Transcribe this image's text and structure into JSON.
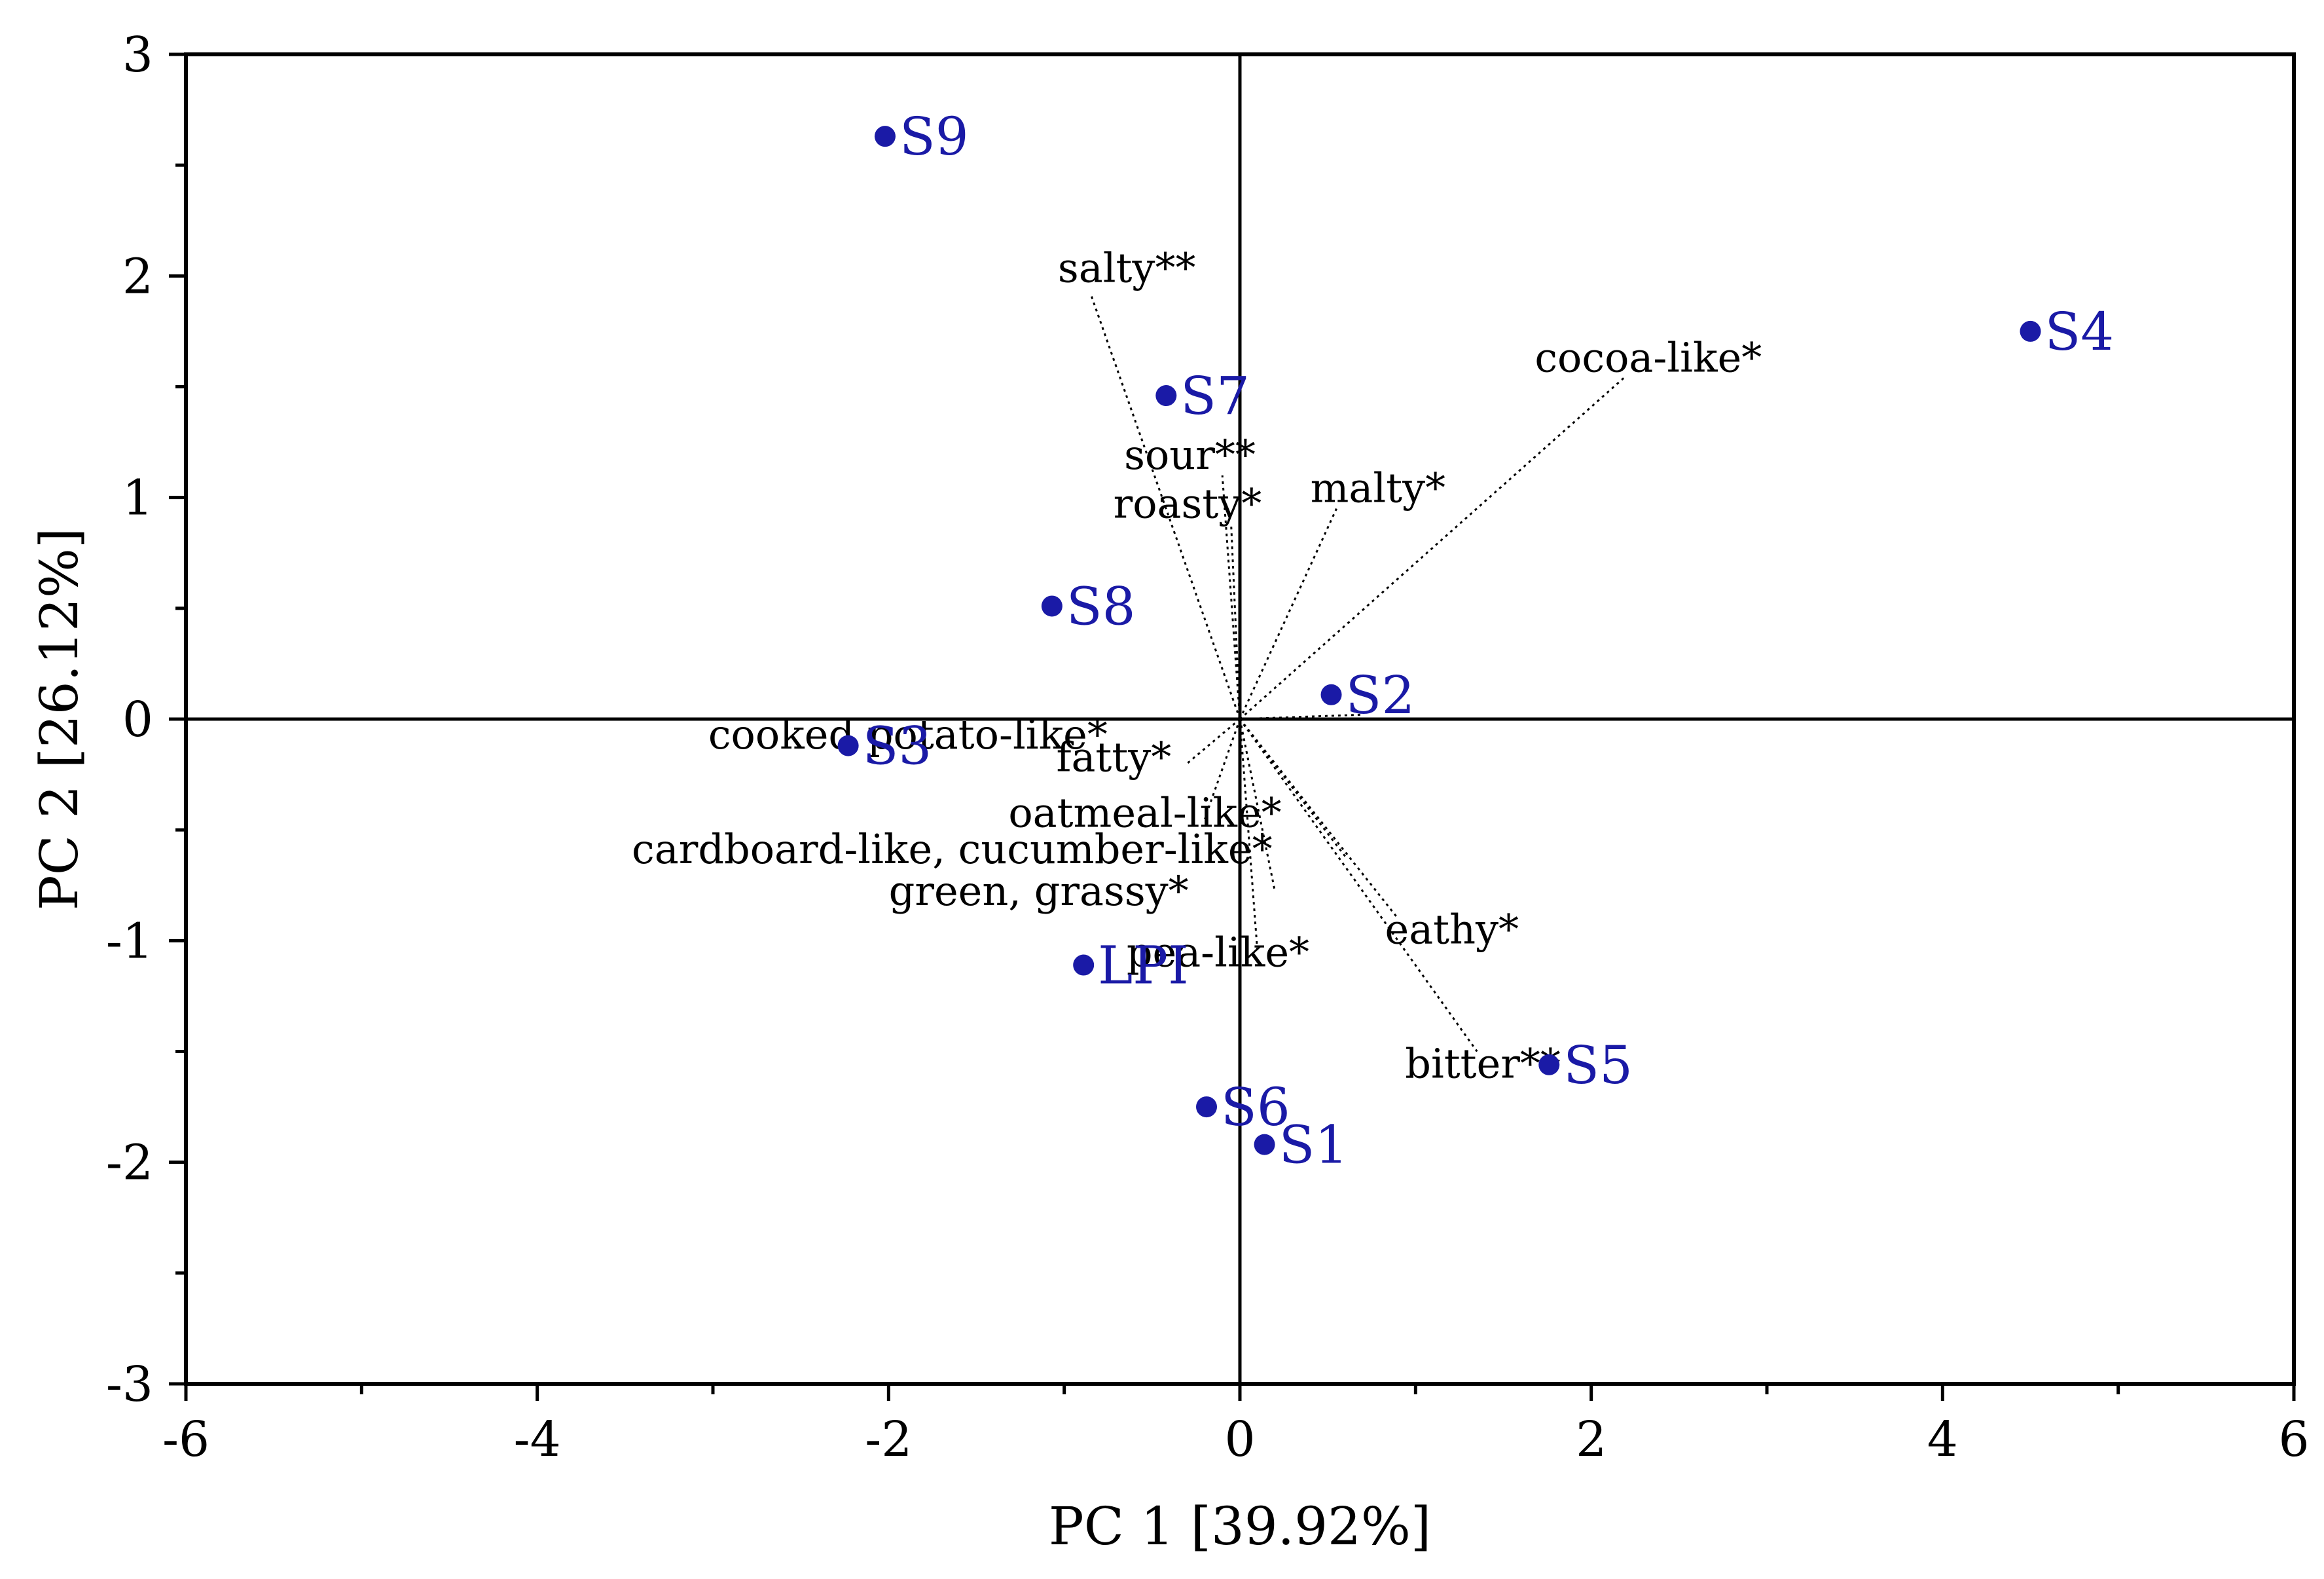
{
  "chart_data": {
    "type": "scatter",
    "title": "",
    "xlabel": "PC 1 [39.92%]",
    "ylabel": "PC 2 [26.12%]",
    "xlim": [
      -6,
      6
    ],
    "ylim": [
      -3,
      3
    ],
    "x_ticks": [
      -6,
      -4,
      -2,
      0,
      2,
      4,
      6
    ],
    "y_ticks": [
      -3,
      -2,
      -1,
      0,
      1,
      2,
      3
    ],
    "grid": false,
    "legend": "none",
    "colors": {
      "scores": "#1a1aa6",
      "axes": "#000000",
      "loadings": "#000000"
    },
    "scores": [
      {
        "label": "S9",
        "x": -2.02,
        "y": 2.63
      },
      {
        "label": "S4",
        "x": 4.5,
        "y": 1.75
      },
      {
        "label": "S7",
        "x": -0.42,
        "y": 1.46
      },
      {
        "label": "S8",
        "x": -1.07,
        "y": 0.51
      },
      {
        "label": "S2",
        "x": 0.52,
        "y": 0.11
      },
      {
        "label": "S3",
        "x": -2.23,
        "y": -0.12
      },
      {
        "label": "LPI",
        "x": -0.89,
        "y": -1.11
      },
      {
        "label": "S5",
        "x": 1.76,
        "y": -1.56
      },
      {
        "label": "S6",
        "x": -0.19,
        "y": -1.75
      },
      {
        "label": "S1",
        "x": 0.14,
        "y": -1.92
      }
    ],
    "loadings": [
      {
        "label": "salty**",
        "x": -0.85,
        "y": 1.92
      },
      {
        "label": "cocoa-like*",
        "x": 2.2,
        "y": 1.55
      },
      {
        "label": "sour**",
        "x": -0.1,
        "y": 1.1
      },
      {
        "label": "roasty*",
        "x": -0.05,
        "y": 0.88
      },
      {
        "label": "malty*",
        "x": 0.55,
        "y": 0.95
      },
      {
        "label": "cooked potato-like*",
        "x": 0.7,
        "y": 0.02
      },
      {
        "label": "fatty*",
        "x": -0.3,
        "y": -0.2
      },
      {
        "label": "oatmeal-like*",
        "x": -0.2,
        "y": -0.45
      },
      {
        "label": "cardboard-like, cucumber-like*",
        "x": 0.6,
        "y": -0.62
      },
      {
        "label": "green, grassy*",
        "x": 0.2,
        "y": -0.78
      },
      {
        "label": "eathy*",
        "x": 0.9,
        "y": -0.9
      },
      {
        "label": "pea-like*",
        "x": 0.1,
        "y": -1.05
      },
      {
        "label": "bitter**",
        "x": 1.35,
        "y": -1.5
      }
    ]
  }
}
